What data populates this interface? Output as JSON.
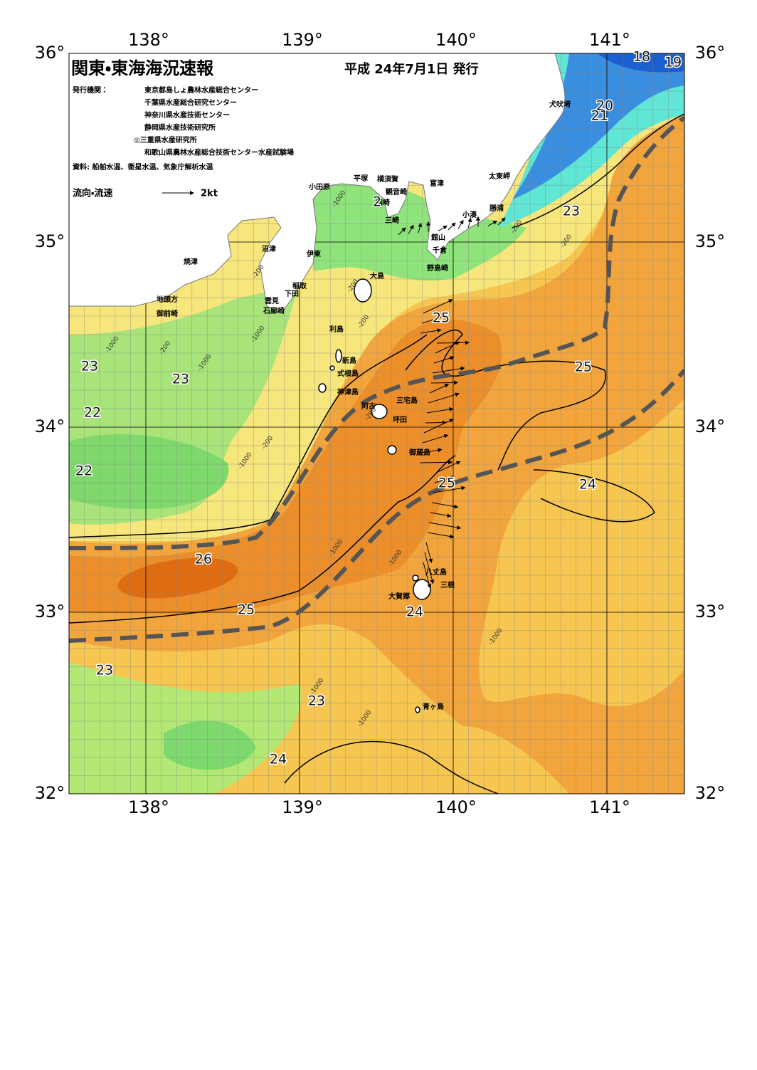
{
  "header": {
    "title": "関東・東海海況速報",
    "date": "平成 24年7月1日 発行",
    "issuer_label": "発行機関：",
    "issuers": [
      "東京都島しょ農林水産総合センター",
      "千葉県水産総合研究センター",
      "神奈川県水産技術センター",
      "静岡県水産技術研究所",
      "◎三重県水産研究所",
      "和歌山県農林水産総合技術センター水産試験場"
    ],
    "source": "資料: 船舶水温、衛星水温、気象庁解析水温",
    "legend_label": "流向・流速",
    "legend_scale": "2kt"
  },
  "axes": {
    "lon_labels": [
      "138°",
      "139°",
      "140°",
      "141°"
    ],
    "lat_labels": [
      "36°",
      "35°",
      "34°",
      "33°",
      "32°"
    ]
  },
  "places": [
    "犬吠埼",
    "太東岬",
    "勝浦",
    "小湊",
    "館山",
    "千倉",
    "野島崎",
    "富津",
    "観音崎",
    "横須賀",
    "平塚",
    "小田原",
    "剱崎",
    "三崎",
    "沼津",
    "伊東",
    "焼津",
    "稲取",
    "下田",
    "雲見",
    "石廊崎",
    "地頭方",
    "御前崎",
    "大島",
    "利島",
    "新島",
    "式根島",
    "神津島",
    "三宅島",
    "阿古",
    "坪田",
    "御蔵島",
    "八丈島",
    "三根",
    "大賀郷",
    "青ヶ島"
  ],
  "isotherm_labels": [
    18,
    19,
    20,
    21,
    23,
    2,
    25,
    25,
    23,
    23,
    22,
    22,
    24,
    25,
    26,
    25,
    24,
    23,
    23,
    24
  ],
  "depth_labels": [
    -1000,
    -1000,
    -1000,
    -1000,
    -1000,
    -1000,
    -1000,
    -1000,
    -1000,
    -1000,
    -200,
    -200,
    -200,
    -200,
    -200,
    -200,
    -200,
    -200
  ]
}
